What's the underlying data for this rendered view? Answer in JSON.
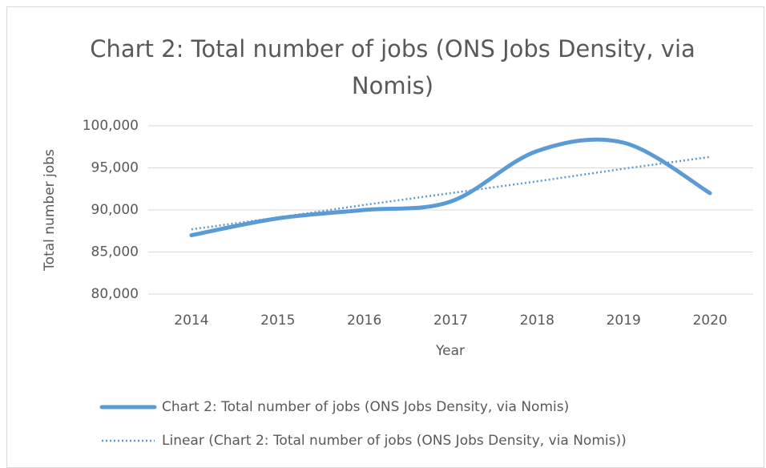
{
  "chart_data": {
    "type": "line",
    "title": "Chart 2: Total number of jobs (ONS Jobs Density, via Nomis)",
    "x_label": "Year",
    "y_label": "Total number jobs",
    "categories": [
      "2014",
      "2015",
      "2016",
      "2017",
      "2018",
      "2019",
      "2020"
    ],
    "series": [
      {
        "name": "Chart 2: Total number of jobs (ONS Jobs Density, via Nomis)",
        "color": "#5b9bd5",
        "style": "solid",
        "smooth": true,
        "values": [
          87000,
          89000,
          90000,
          91000,
          97000,
          98000,
          92000
        ]
      },
      {
        "name": "Linear (Chart 2: Total number of jobs (ONS Jobs Density, via Nomis))",
        "color": "#5b9bd5",
        "style": "dotted",
        "smooth": false,
        "values": [
          87700,
          89100,
          90600,
          92000,
          93400,
          94900,
          96300
        ]
      }
    ],
    "ylim": [
      80000,
      100000
    ],
    "yticks": [
      {
        "value": 80000,
        "label": "80,000"
      },
      {
        "value": 85000,
        "label": "85,000"
      },
      {
        "value": 90000,
        "label": "90,000"
      },
      {
        "value": 95000,
        "label": "95,000"
      },
      {
        "value": 100000,
        "label": "100,000"
      }
    ],
    "grid": true,
    "legend": "bottom"
  }
}
